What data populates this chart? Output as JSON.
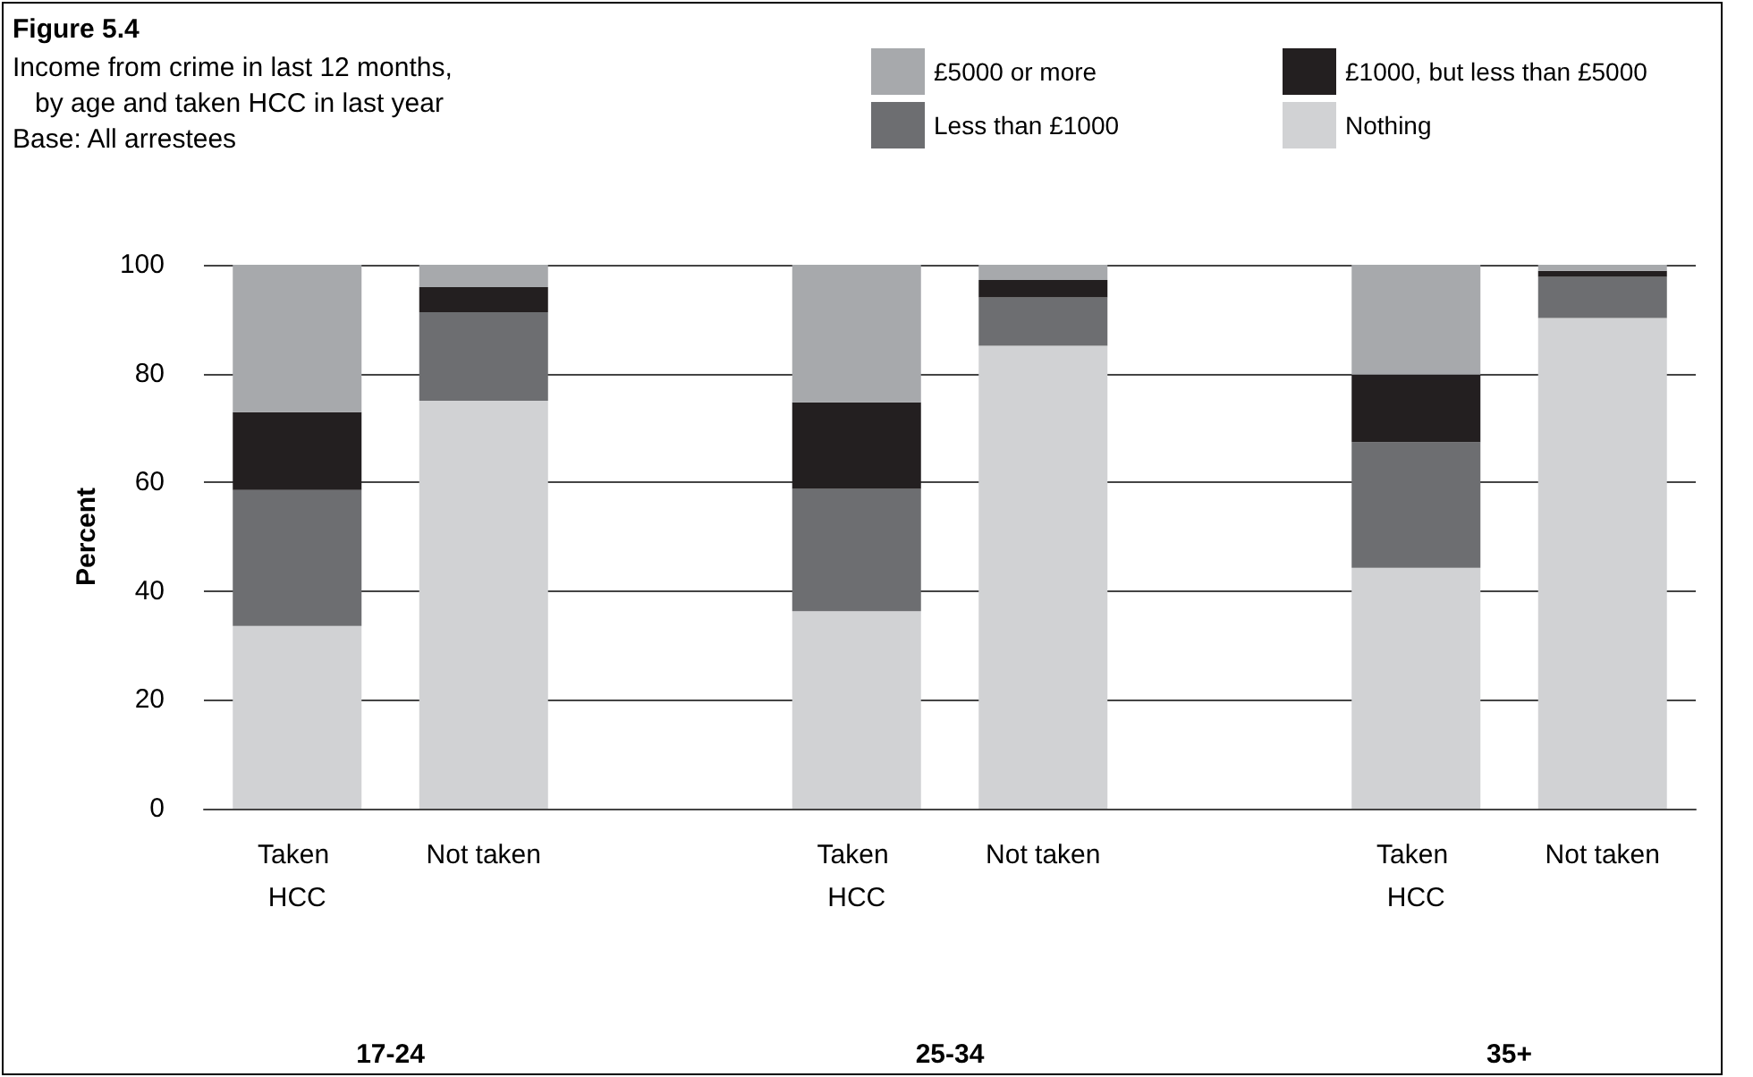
{
  "chart_data": {
    "type": "bar",
    "title": "Figure 5.4",
    "subtitle": "Income from crime in last 12 months,\n   by age and taken HCC in last year\nBase: All arrestees",
    "ylabel": "Percent",
    "categories": [
      "Taken HCC",
      "Not taken",
      null,
      "Taken HCC",
      "Not taken",
      null,
      "Taken HCC",
      "Not taken"
    ],
    "stacked": true,
    "series": [
      {
        "name": "Nothing",
        "color": "#d1d2d4",
        "values": [
          33.6,
          75,
          null,
          36.3,
          85.1,
          null,
          44.3,
          90.2
        ]
      },
      {
        "name": "Less than £1000",
        "color": "#6d6e71",
        "values": [
          25,
          16.3,
          null,
          22.5,
          8.9,
          null,
          23.1,
          7.6
        ]
      },
      {
        "name": "£1000, but less than £5000",
        "color": "#231f20",
        "values": [
          14.3,
          4.6,
          null,
          15.9,
          3.2,
          null,
          12.4,
          1.1
        ]
      },
      {
        "name": "£5000 or more",
        "color": "#a7a9ac",
        "values": [
          27.1,
          4.1,
          null,
          25.3,
          2.8,
          null,
          20.2,
          1.1
        ]
      }
    ],
    "annotations": [
      "17-24",
      "25-34",
      "35+"
    ],
    "ylim": [
      0,
      100
    ],
    "yticks": [
      0,
      20,
      40,
      60,
      80,
      100
    ],
    "grid": "y",
    "legend": "top right"
  }
}
